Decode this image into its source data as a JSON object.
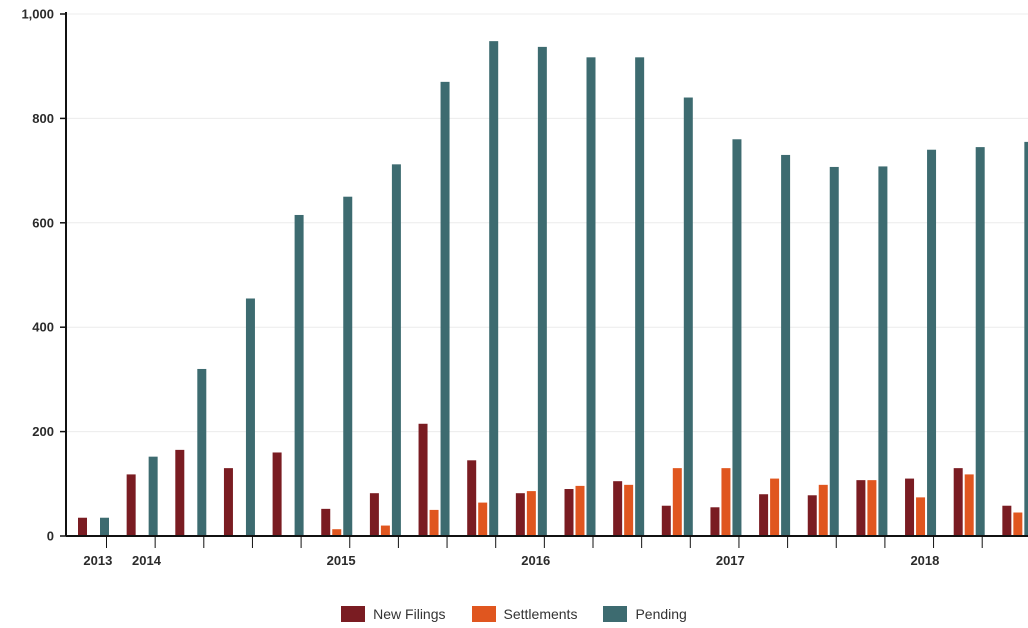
{
  "chart_data": {
    "type": "bar",
    "title": "",
    "xlabel": "",
    "ylabel": "",
    "ylim": [
      0,
      1000
    ],
    "yticks": [
      {
        "value": 0,
        "label": "0"
      },
      {
        "value": 200,
        "label": "200"
      },
      {
        "value": 400,
        "label": "400"
      },
      {
        "value": 600,
        "label": "600"
      },
      {
        "value": 800,
        "label": "800"
      },
      {
        "value": 1000,
        "label": "1,000"
      }
    ],
    "x_year_labels": [
      {
        "label": "2013",
        "at": 0.1
      },
      {
        "label": "2014",
        "at": 1.1
      },
      {
        "label": "2015",
        "at": 5.1
      },
      {
        "label": "2016",
        "at": 9.1
      },
      {
        "label": "2017",
        "at": 13.1
      },
      {
        "label": "2018",
        "at": 17.1
      }
    ],
    "categories": [
      "2013 Q4",
      "2014 Q1",
      "2014 Q2",
      "2014 Q3",
      "2014 Q4",
      "2015 Q1",
      "2015 Q2",
      "2015 Q3",
      "2015 Q4",
      "2016 Q1",
      "2016 Q2",
      "2016 Q3",
      "2016 Q4",
      "2017 Q1",
      "2017 Q2",
      "2017 Q3",
      "2017 Q4",
      "2018 Q1",
      "2018 Q2",
      "2018 Q3",
      "2018 Q4"
    ],
    "series": [
      {
        "name": "New Filings",
        "color": "#7a1c22",
        "values": [
          35,
          118,
          165,
          130,
          160,
          52,
          82,
          215,
          145,
          82,
          90,
          105,
          58,
          55,
          80,
          78,
          107,
          110,
          130,
          58,
          null
        ]
      },
      {
        "name": "Settlements",
        "color": "#e0561f",
        "values": [
          0,
          0,
          0,
          0,
          0,
          13,
          20,
          50,
          64,
          86,
          96,
          98,
          130,
          130,
          110,
          98,
          107,
          74,
          118,
          45,
          null
        ]
      },
      {
        "name": "Pending",
        "color": "#3d6b70",
        "values": [
          35,
          152,
          320,
          455,
          615,
          650,
          712,
          870,
          948,
          937,
          917,
          917,
          840,
          760,
          730,
          707,
          708,
          740,
          745,
          755,
          null
        ]
      }
    ]
  }
}
